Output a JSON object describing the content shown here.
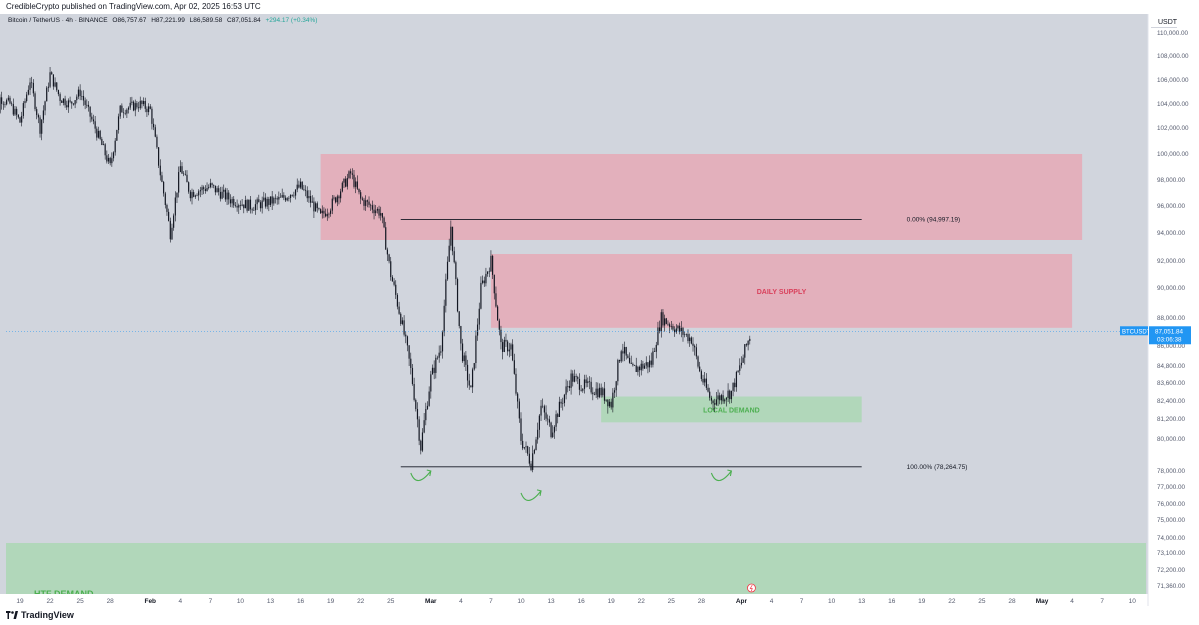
{
  "header": {
    "publisher": "CredibleCrypto published on TradingView.com, Apr 02, 2025 16:53 UTC"
  },
  "symbol_info": {
    "name": "Bitcoin / TetherUS · 4h · BINANCE",
    "open_label": "O",
    "open": "86,757.67",
    "high_label": "H",
    "high": "87,221.99",
    "low_label": "L",
    "low": "86,589.58",
    "close_label": "C",
    "close": "87,051.84",
    "change": "+294.17 (+0.34%)"
  },
  "price_axis": {
    "currency": "USDT",
    "current_price": "87,051.84",
    "countdown": "03:06:38",
    "ticker": "BTCUSDT"
  },
  "footer": {
    "brand": "TradingView"
  },
  "colors": {
    "background": "#d1d5dd",
    "supply_zone": "#e8a3b0",
    "demand_zone": "#a6d7ad",
    "supply_text": "#d9415c",
    "demand_text": "#4caf50",
    "candle": "#131722",
    "arrow": "#4caf50",
    "price_tag": "#2196f3"
  },
  "chart_data": {
    "type": "candlestick",
    "symbol": "BTCUSDT",
    "interval": "4h",
    "ylim": [
      70500,
      111000
    ],
    "y_ticks": [
      "110,000.00",
      "108,000.00",
      "106,000.00",
      "104,000.00",
      "102,000.00",
      "100,000.00",
      "98,000.00",
      "96,000.00",
      "94,000.00",
      "92,000.00",
      "90,000.00",
      "88,000.00",
      "86,000.00",
      "84,800.00",
      "83,600.00",
      "82,400.00",
      "81,200.00",
      "80,000.00",
      "78,000.00",
      "77,000.00",
      "76,000.00",
      "75,000.00",
      "74,000.00",
      "73,100.00",
      "72,200.00",
      "71,360.00"
    ],
    "x_ticks": [
      "19",
      "22",
      "25",
      "28",
      "Feb",
      "4",
      "7",
      "10",
      "13",
      "16",
      "19",
      "22",
      "25",
      "Mar",
      "4",
      "7",
      "10",
      "13",
      "16",
      "19",
      "22",
      "25",
      "28",
      "Apr",
      "4",
      "7",
      "10",
      "13",
      "16",
      "19",
      "22",
      "25",
      "28",
      "May",
      "4",
      "7",
      "10"
    ],
    "price_path": [
      {
        "t": "Jan 16",
        "p": 98500
      },
      {
        "t": "Jan 17",
        "p": 104500
      },
      {
        "t": "Jan 18",
        "p": 104000
      },
      {
        "t": "Jan 19",
        "p": 102500
      },
      {
        "t": "Jan 20",
        "p": 106000
      },
      {
        "t": "Jan 21",
        "p": 102000
      },
      {
        "t": "Jan 22",
        "p": 106500
      },
      {
        "t": "Jan 23",
        "p": 104500
      },
      {
        "t": "Jan 24",
        "p": 104000
      },
      {
        "t": "Jan 25",
        "p": 105000
      },
      {
        "t": "Jan 27",
        "p": 101000
      },
      {
        "t": "Jan 28",
        "p": 99000
      },
      {
        "t": "Jan 29",
        "p": 103500
      },
      {
        "t": "Jan 31",
        "p": 104000
      },
      {
        "t": "Feb 1",
        "p": 103500
      },
      {
        "t": "Feb 2",
        "p": 98500
      },
      {
        "t": "Feb 3",
        "p": 94000
      },
      {
        "t": "Feb 4",
        "p": 99000
      },
      {
        "t": "Feb 5",
        "p": 97000
      },
      {
        "t": "Feb 7",
        "p": 97500
      },
      {
        "t": "Feb 9",
        "p": 96500
      },
      {
        "t": "Feb 11",
        "p": 96000
      },
      {
        "t": "Feb 14",
        "p": 96500
      },
      {
        "t": "Feb 16",
        "p": 97500
      },
      {
        "t": "Feb 18",
        "p": 95200
      },
      {
        "t": "Feb 19",
        "p": 96000
      },
      {
        "t": "Feb 21",
        "p": 98500
      },
      {
        "t": "Feb 22",
        "p": 96500
      },
      {
        "t": "Feb 24",
        "p": 95500
      },
      {
        "t": "Feb 25",
        "p": 91000
      },
      {
        "t": "Feb 26",
        "p": 88000
      },
      {
        "t": "Feb 27",
        "p": 84500
      },
      {
        "t": "Feb 28",
        "p": 79500
      },
      {
        "t": "Mar 1",
        "p": 84000
      },
      {
        "t": "Mar 2",
        "p": 86000
      },
      {
        "t": "Mar 3",
        "p": 94500
      },
      {
        "t": "Mar 4",
        "p": 86000
      },
      {
        "t": "Mar 5",
        "p": 83000
      },
      {
        "t": "Mar 6",
        "p": 90000
      },
      {
        "t": "Mar 7",
        "p": 92000
      },
      {
        "t": "Mar 8",
        "p": 86000
      },
      {
        "t": "Mar 9",
        "p": 86000
      },
      {
        "t": "Mar 10",
        "p": 80000
      },
      {
        "t": "Mar 11",
        "p": 78500
      },
      {
        "t": "Mar 12",
        "p": 82000
      },
      {
        "t": "Mar 13",
        "p": 80500
      },
      {
        "t": "Mar 15",
        "p": 84000
      },
      {
        "t": "Mar 16",
        "p": 83500
      },
      {
        "t": "Mar 18",
        "p": 83000
      },
      {
        "t": "Mar 19",
        "p": 82200
      },
      {
        "t": "Mar 20",
        "p": 86000
      },
      {
        "t": "Mar 21",
        "p": 84500
      },
      {
        "t": "Mar 23",
        "p": 85000
      },
      {
        "t": "Mar 24",
        "p": 88000
      },
      {
        "t": "Mar 25",
        "p": 87500
      },
      {
        "t": "Mar 26",
        "p": 87000
      },
      {
        "t": "Mar 27",
        "p": 86500
      },
      {
        "t": "Mar 28",
        "p": 84000
      },
      {
        "t": "Mar 29",
        "p": 82400
      },
      {
        "t": "Mar 31",
        "p": 83000
      },
      {
        "t": "Apr 1",
        "p": 85000
      },
      {
        "t": "Apr 2",
        "p": 87051.84
      }
    ],
    "zones": [
      {
        "label": "",
        "kind": "supply",
        "from": "Feb 18",
        "to": "May 5",
        "top": 100000,
        "bottom": 93500
      },
      {
        "label": "DAILY SUPPLY",
        "kind": "supply",
        "from": "Mar 7",
        "to": "May 4",
        "top": 92500,
        "bottom": 87300
      },
      {
        "label": "LOCAL DEMAND",
        "kind": "demand",
        "from": "Mar 18",
        "to": "Apr 13",
        "top": 82700,
        "bottom": 81000
      },
      {
        "label": "HTF DEMAND",
        "kind": "demand",
        "from": "Jan 16",
        "to": "May 12",
        "top": 73700,
        "bottom": 70500
      }
    ],
    "fib_levels": [
      {
        "label": "0.00% (94,997.19)",
        "price": 94997.19,
        "from": "Feb 26",
        "to": "Apr 13"
      },
      {
        "label": "100.00% (78,264.75)",
        "price": 78264.75,
        "from": "Feb 26",
        "to": "Apr 13"
      }
    ],
    "annotations": [
      {
        "type": "curved-arrow-up",
        "t": "Feb 28",
        "price": 77500
      },
      {
        "type": "curved-arrow-up",
        "t": "Mar 11",
        "price": 76300
      },
      {
        "type": "curved-arrow-up",
        "t": "Mar 30",
        "price": 77500
      }
    ]
  }
}
